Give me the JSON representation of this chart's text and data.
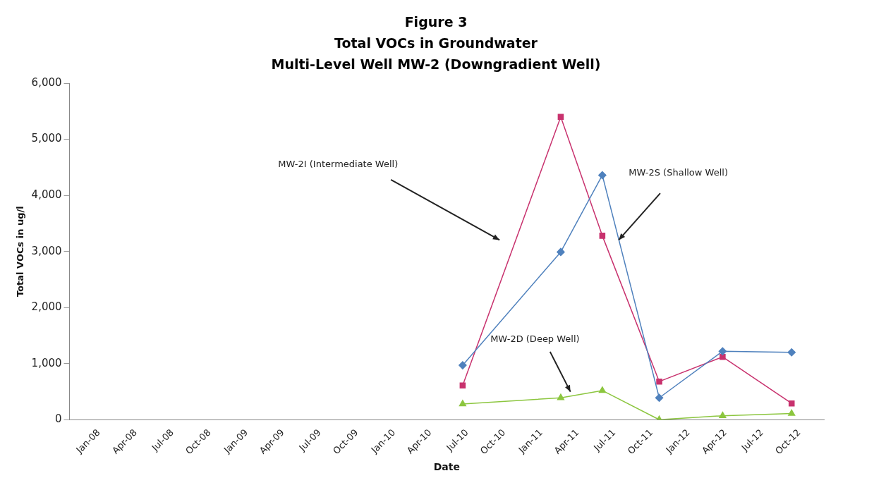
{
  "chart_data": {
    "type": "line",
    "title": "Figure 3",
    "subtitle": "Total VOCs in Groundwater\nMulti-Level Well MW-2 (Downgradient Well)",
    "xlabel": "Date",
    "ylabel": "Total VOCs in ug/l",
    "series": [
      {
        "color": "#4f81bd",
        "marker": "diamond",
        "x": [
          "2010-06-20",
          "2011-02-18",
          "2011-06-01",
          "2011-10-20",
          "2012-03-25",
          "2012-09-12"
        ],
        "values": [
          970,
          2990,
          4360,
          390,
          1220,
          1200
        ]
      },
      {
        "color": "#c8326e",
        "marker": "square",
        "x": [
          "2010-06-20",
          "2011-02-18",
          "2011-06-01",
          "2011-10-20",
          "2012-03-25",
          "2012-09-12"
        ],
        "values": [
          610,
          5400,
          3280,
          680,
          1120,
          290
        ]
      },
      {
        "color": "#8cc63f",
        "marker": "triangle",
        "x": [
          "2010-06-20",
          "2011-02-18",
          "2011-06-01",
          "2011-10-20",
          "2012-03-25",
          "2012-09-12"
        ],
        "values": [
          280,
          390,
          520,
          0,
          70,
          110
        ]
      }
    ],
    "xlim": [
      "2007-10-20",
      "2012-12-01"
    ],
    "xticks": [
      {
        "value": "2008-01-01",
        "label": "Jan-08"
      },
      {
        "value": "2008-04-01",
        "label": "Apr-08"
      },
      {
        "value": "2008-07-01",
        "label": "Jul-08"
      },
      {
        "value": "2008-10-01",
        "label": "Oct-08"
      },
      {
        "value": "2009-01-01",
        "label": "Jan-09"
      },
      {
        "value": "2009-04-01",
        "label": "Apr-09"
      },
      {
        "value": "2009-07-01",
        "label": "Jul-09"
      },
      {
        "value": "2009-10-01",
        "label": "Oct-09"
      },
      {
        "value": "2010-01-01",
        "label": "Jan-10"
      },
      {
        "value": "2010-04-01",
        "label": "Apr-10"
      },
      {
        "value": "2010-07-01",
        "label": "Jul-10"
      },
      {
        "value": "2010-10-01",
        "label": "Oct-10"
      },
      {
        "value": "2011-01-01",
        "label": "Jan-11"
      },
      {
        "value": "2011-04-01",
        "label": "Apr-11"
      },
      {
        "value": "2011-07-01",
        "label": "Jul-11"
      },
      {
        "value": "2011-10-01",
        "label": "Oct-11"
      },
      {
        "value": "2012-01-01",
        "label": "Jan-12"
      },
      {
        "value": "2012-04-01",
        "label": "Apr-12"
      },
      {
        "value": "2012-07-01",
        "label": "Jul-12"
      },
      {
        "value": "2012-10-01",
        "label": "Oct-12"
      }
    ],
    "ylim": [
      0,
      6000
    ],
    "yticks": [
      0,
      {
        "value": 1000,
        "label": "1,000"
      },
      {
        "value": 2000,
        "label": "2,000"
      },
      {
        "value": 3000,
        "label": "3,000"
      },
      {
        "value": 4000,
        "label": "4,000"
      },
      {
        "value": 5000,
        "label": "5,000"
      },
      {
        "value": 6000,
        "label": "6,000"
      }
    ],
    "grid": false,
    "legend": false,
    "line_style": "solid",
    "annotations": [
      "MW-2I (Intermediate Well)",
      "MW-2S (Shallow Well)",
      "MW-2D (Deep Well)"
    ]
  }
}
